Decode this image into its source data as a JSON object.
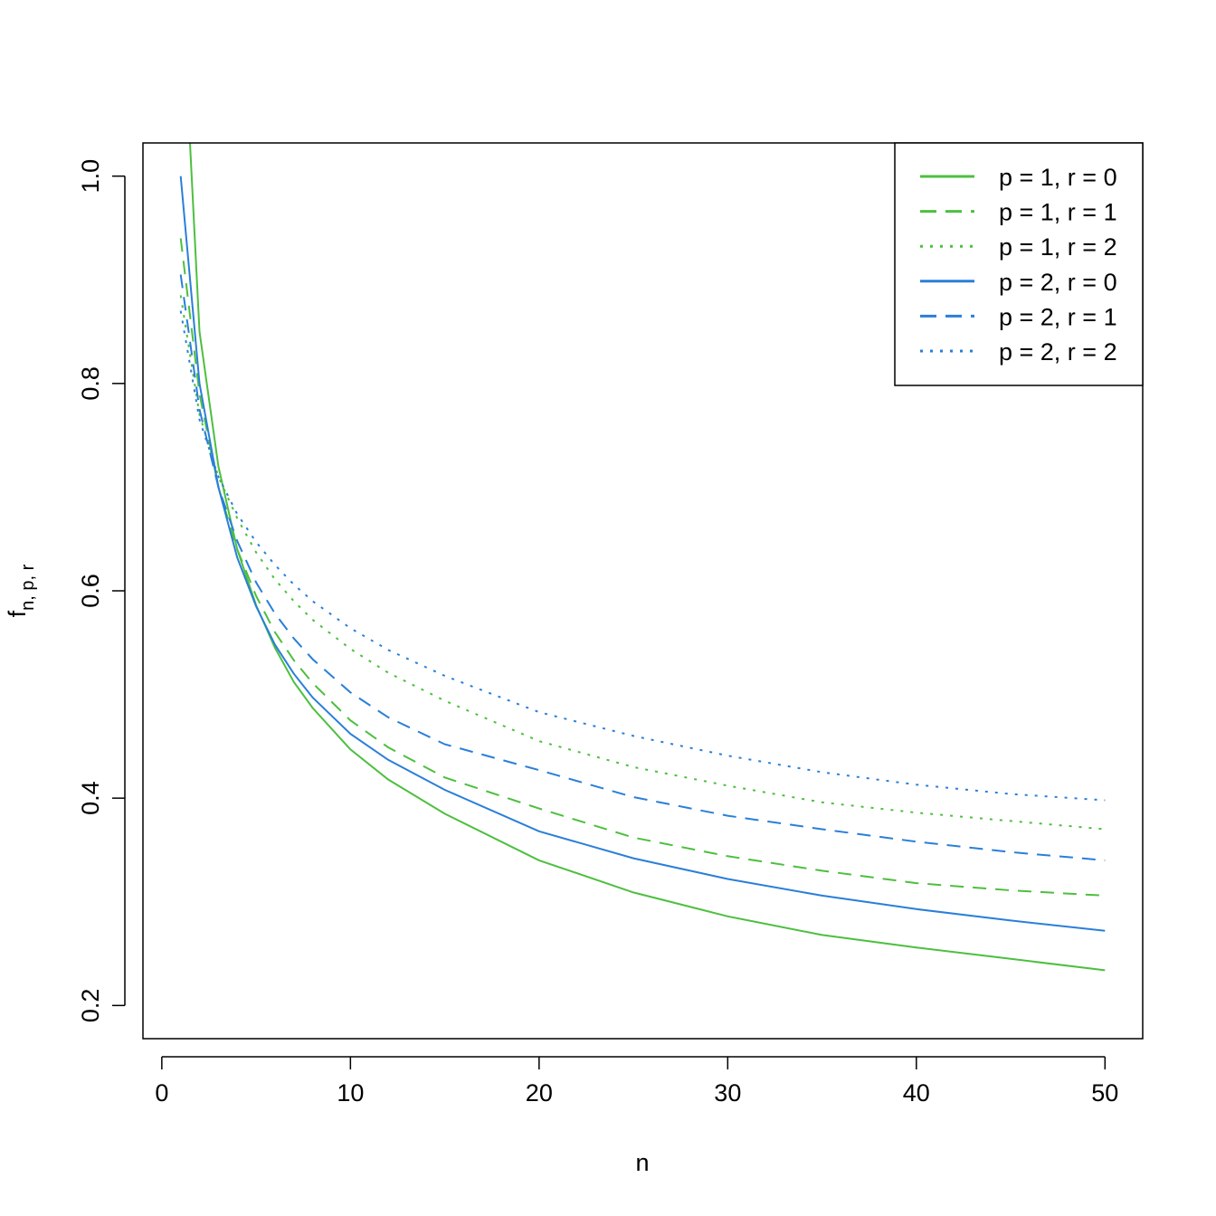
{
  "chart_data": {
    "type": "line",
    "title": "",
    "xlabel": "n",
    "ylabel": {
      "base": "f",
      "subscript": "n, p, r"
    },
    "xlim": [
      -1,
      52
    ],
    "ylim": [
      0.168,
      1.032
    ],
    "xticks": [
      0,
      10,
      20,
      30,
      40,
      50
    ],
    "yticks": [
      0.2,
      0.4,
      0.6,
      0.8,
      1.0
    ],
    "xtick_labels": [
      "0",
      "10",
      "20",
      "30",
      "40",
      "50"
    ],
    "ytick_labels": [
      "0.2",
      "0.4",
      "0.6",
      "0.8",
      "1.0"
    ],
    "grid": false,
    "legend_position": "top-right",
    "x": [
      1,
      2,
      3,
      4,
      5,
      6,
      7,
      8,
      10,
      12,
      15,
      20,
      25,
      30,
      35,
      40,
      45,
      50
    ],
    "series": [
      {
        "name": "p = 1, r = 0",
        "color": "#4DBF3F",
        "dash": "solid",
        "values": [
          1.21,
          0.85,
          0.72,
          0.64,
          0.586,
          0.545,
          0.512,
          0.487,
          0.447,
          0.418,
          0.385,
          0.34,
          0.309,
          0.286,
          0.268,
          0.256,
          0.245,
          0.234
        ]
      },
      {
        "name": "p = 1, r = 1",
        "color": "#4DBF3F",
        "dash": "dashed",
        "values": [
          0.94,
          0.79,
          0.7,
          0.64,
          0.595,
          0.56,
          0.533,
          0.511,
          0.475,
          0.449,
          0.42,
          0.39,
          0.362,
          0.344,
          0.33,
          0.318,
          0.311,
          0.306
        ]
      },
      {
        "name": "p = 1, r = 2",
        "color": "#4DBF3F",
        "dash": "dotted",
        "values": [
          0.885,
          0.77,
          0.71,
          0.67,
          0.637,
          0.611,
          0.59,
          0.572,
          0.544,
          0.521,
          0.494,
          0.455,
          0.43,
          0.412,
          0.396,
          0.386,
          0.378,
          0.37
        ]
      },
      {
        "name": "p = 2, r = 0",
        "color": "#2A7FD8",
        "dash": "solid",
        "values": [
          1.0,
          0.8,
          0.7,
          0.632,
          0.585,
          0.548,
          0.52,
          0.497,
          0.462,
          0.437,
          0.408,
          0.368,
          0.342,
          0.322,
          0.306,
          0.293,
          0.282,
          0.272
        ]
      },
      {
        "name": "p = 2, r = 1",
        "color": "#2A7FD8",
        "dash": "dashed",
        "values": [
          0.905,
          0.775,
          0.7,
          0.648,
          0.608,
          0.578,
          0.554,
          0.534,
          0.502,
          0.478,
          0.452,
          0.427,
          0.401,
          0.383,
          0.37,
          0.358,
          0.348,
          0.34
        ]
      },
      {
        "name": "p = 2, r = 2",
        "color": "#2A7FD8",
        "dash": "dotted",
        "values": [
          0.87,
          0.765,
          0.71,
          0.674,
          0.647,
          0.625,
          0.606,
          0.59,
          0.564,
          0.543,
          0.518,
          0.483,
          0.46,
          0.441,
          0.425,
          0.413,
          0.404,
          0.398
        ]
      }
    ]
  }
}
